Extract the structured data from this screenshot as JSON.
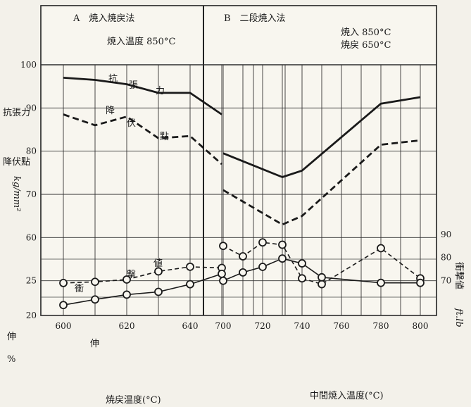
{
  "chart_data": [
    {
      "panel": "A",
      "header": "A　焼入焼戻法",
      "condition": "焼入温度 850°C",
      "type": "line",
      "xlabel": "焼戻温度(°C)",
      "x_ticks": [
        "600",
        "620",
        "640"
      ],
      "xlim": [
        600,
        670
      ],
      "series": [
        {
          "name": "抗張力",
          "style": "solid",
          "axis": "kg/mm2",
          "x": [
            600,
            610,
            620,
            630,
            640,
            650
          ],
          "y": [
            97,
            96.5,
            95.5,
            93.5,
            93.5,
            88.5
          ]
        },
        {
          "name": "降伏點",
          "style": "dashed",
          "axis": "kg/mm2",
          "x": [
            600,
            610,
            620,
            630,
            640,
            650
          ],
          "y": [
            88.5,
            86,
            88,
            83,
            83.5,
            77
          ]
        },
        {
          "name": "衝撃値",
          "style": "dashed",
          "marker": "circle",
          "axis": "ft.lb",
          "x": [
            600,
            610,
            620,
            630,
            640,
            650
          ],
          "y": [
            69,
            69.5,
            70.5,
            74,
            76,
            75.5
          ]
        },
        {
          "name": "伸",
          "style": "solid",
          "marker": "circle",
          "axis": "%",
          "x": [
            600,
            610,
            620,
            630,
            640,
            650
          ],
          "y": [
            21.5,
            22.3,
            23,
            23.4,
            24.5,
            26
          ]
        }
      ]
    },
    {
      "panel": "B",
      "header": "B　二段焼入法",
      "condition_lines": [
        "焼入 850°C",
        "焼戻 650°C"
      ],
      "type": "line",
      "xlabel": "中間焼入温度(°C)",
      "x_ticks": [
        "700",
        "720",
        "740",
        "760",
        "780",
        "800"
      ],
      "xlim": [
        690,
        810
      ],
      "series": [
        {
          "name": "抗張力",
          "style": "solid",
          "axis": "kg/mm2",
          "x": [
            700,
            730,
            740,
            780,
            800
          ],
          "y": [
            79.5,
            74,
            75.5,
            91,
            92.5
          ]
        },
        {
          "name": "降伏點",
          "style": "dashed",
          "axis": "kg/mm2",
          "x": [
            700,
            730,
            740,
            780,
            800
          ],
          "y": [
            71,
            63,
            65,
            81.5,
            82.5
          ]
        },
        {
          "name": "衝撃値",
          "style": "dashed",
          "marker": "circle",
          "axis": "ft.lb",
          "x": [
            700,
            710,
            720,
            730,
            740,
            750,
            780,
            800
          ],
          "y": [
            85,
            80.5,
            86.5,
            85.5,
            71,
            68.5,
            84,
            71
          ]
        },
        {
          "name": "伸",
          "style": "solid",
          "marker": "circle",
          "axis": "%",
          "x": [
            700,
            710,
            720,
            730,
            740,
            750,
            780,
            800
          ],
          "y": [
            25,
            26.2,
            27,
            28.2,
            27.5,
            25.5,
            24.7,
            24.7
          ]
        }
      ]
    }
  ],
  "axes": {
    "left_upper": {
      "label_lines": [
        "抗張力",
        "降伏點"
      ],
      "unit": "kg/mm²",
      "ticks": [
        "100",
        "90",
        "80",
        "70",
        "60"
      ],
      "range": [
        55,
        100
      ]
    },
    "left_lower": {
      "label": "伸",
      "unit": "%",
      "ticks": [
        "25",
        "20"
      ],
      "range": [
        20,
        33.8
      ]
    },
    "right": {
      "label": "衝撃値",
      "unit": "ft.lb",
      "ticks": [
        "90",
        "80",
        "70"
      ],
      "range": [
        55,
        96
      ]
    }
  },
  "annotations": {
    "tensile": [
      "抗",
      "張",
      "力"
    ],
    "yield": [
      "降",
      "伏",
      "點"
    ],
    "impact": [
      "衝",
      "撃",
      "値"
    ],
    "elong": "伸"
  }
}
